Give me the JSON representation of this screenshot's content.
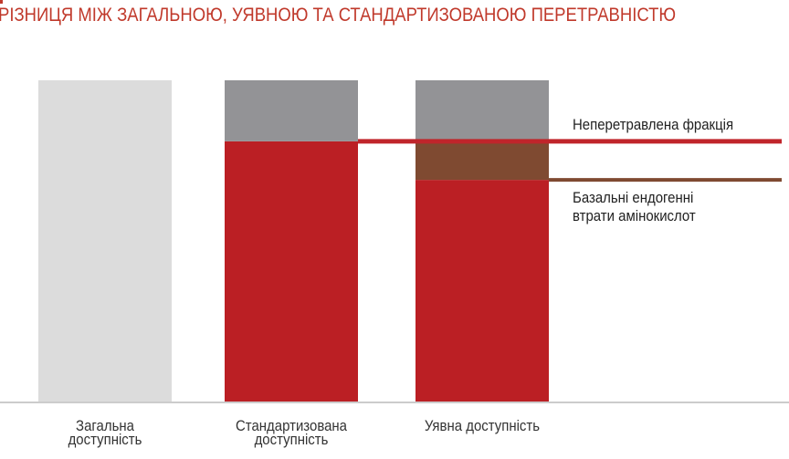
{
  "title": "РІЗНИЦЯ МІЖ ЗАГАЛЬНОЮ, УЯВНОЮ ТА СТАНДАРТИЗОВАНОЮ ПЕРЕТРАВНІСТЮ",
  "colors": {
    "title": "#c0392b",
    "total": "#dcdcdc",
    "undigested": "#939396",
    "digestible": "#bb1f24",
    "endogenous": "#7f4a31",
    "undigested_line": "#c0252b",
    "endogenous_line": "#7f4a31",
    "axis": "#9a9a9a"
  },
  "chart_data": {
    "type": "bar",
    "stacked": true,
    "title": "РІЗНИЦЯ МІЖ ЗАГАЛЬНОЮ, УЯВНОЮ ТА СТАНДАРТИЗОВАНОЮ ПЕРЕТРАВНІСТЮ",
    "categories": [
      "Загальна доступність",
      "Стандартизована доступність",
      "Уявна доступність"
    ],
    "category_lines": [
      [
        "Загальна",
        "доступність"
      ],
      [
        "Стандартизована",
        "доступність"
      ],
      [
        "Уявна доступність"
      ]
    ],
    "ylim": [
      0,
      100
    ],
    "segments": [
      {
        "key": "total",
        "values": [
          100,
          0,
          0
        ]
      },
      {
        "key": "digestible",
        "values": [
          0,
          81,
          69
        ]
      },
      {
        "key": "endogenous",
        "values": [
          0,
          0,
          12
        ]
      },
      {
        "key": "undigested",
        "values": [
          0,
          19,
          19
        ]
      }
    ],
    "annotations": [
      {
        "key": "undigested",
        "text": "Неперетравлена фракція",
        "level": 81
      },
      {
        "key": "endogenous",
        "text": "Базальні ендогенні\nвтрати амінокислот",
        "level": 69
      }
    ],
    "grid": false,
    "yaxis_visible": false
  }
}
